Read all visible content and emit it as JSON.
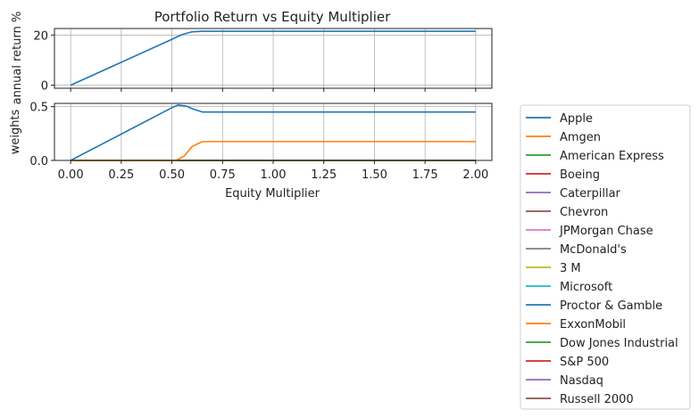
{
  "chart_data": {
    "type": "line",
    "title": "Portfolio Return vs Equity Multiplier",
    "xlabel": "Equity Multiplier",
    "x_ticks": [
      "0.00",
      "0.25",
      "0.50",
      "0.75",
      "1.00",
      "1.25",
      "1.50",
      "1.75",
      "2.00"
    ],
    "xlim": [
      -0.08,
      2.08
    ],
    "grid": true,
    "legend_position": "outside-right",
    "top": {
      "ylabel": "annual return %",
      "ylim": [
        -1.2,
        22.6
      ],
      "y_ticks": [
        0,
        20
      ],
      "series": [
        {
          "color": "#1f77b4",
          "points": [
            [
              0.0,
              0.0
            ],
            [
              0.5,
              18.3
            ],
            [
              0.55,
              20.2
            ],
            [
              0.6,
              21.3
            ],
            [
              0.65,
              21.5
            ],
            [
              2.0,
              21.5
            ]
          ]
        }
      ]
    },
    "bottom": {
      "ylabel": "weights",
      "ylim": [
        0.0,
        0.53
      ],
      "y_ticks": [
        "0.0",
        "0.5"
      ],
      "series": [
        {
          "name": "Apple",
          "color": "#1f77b4",
          "points": [
            [
              0.0,
              0.0
            ],
            [
              0.5,
              0.49
            ],
            [
              0.53,
              0.515
            ],
            [
              0.57,
              0.505
            ],
            [
              0.6,
              0.48
            ],
            [
              0.65,
              0.45
            ],
            [
              2.0,
              0.45
            ]
          ]
        },
        {
          "name": "Amgen",
          "color": "#ff7f0e",
          "points": [
            [
              0.0,
              0.0
            ],
            [
              0.52,
              0.0
            ],
            [
              0.56,
              0.04
            ],
            [
              0.6,
              0.13
            ],
            [
              0.65,
              0.175
            ],
            [
              2.0,
              0.175
            ]
          ]
        },
        {
          "name": "American Express",
          "color": "#2ca02c",
          "points": [
            [
              0.0,
              0.0
            ],
            [
              2.0,
              0.0
            ]
          ]
        },
        {
          "name": "Boeing",
          "color": "#d62728",
          "points": [
            [
              0.0,
              0.0
            ],
            [
              2.0,
              0.0
            ]
          ]
        },
        {
          "name": "Caterpillar",
          "color": "#9467bd",
          "points": [
            [
              0.0,
              0.0
            ],
            [
              2.0,
              0.0
            ]
          ]
        },
        {
          "name": "Chevron",
          "color": "#8c564b",
          "points": [
            [
              0.0,
              0.0
            ],
            [
              2.0,
              0.0
            ]
          ]
        },
        {
          "name": "JPMorgan Chase",
          "color": "#e377c2",
          "points": [
            [
              0.0,
              0.0
            ],
            [
              2.0,
              0.0
            ]
          ]
        },
        {
          "name": "McDonald's",
          "color": "#7f7f7f",
          "points": [
            [
              0.0,
              0.0
            ],
            [
              2.0,
              0.0
            ]
          ]
        },
        {
          "name": "3 M",
          "color": "#bcbd22",
          "points": [
            [
              0.0,
              0.0
            ],
            [
              2.0,
              0.0
            ]
          ]
        },
        {
          "name": "Microsoft",
          "color": "#17becf",
          "points": [
            [
              0.0,
              0.0
            ],
            [
              2.0,
              0.0
            ]
          ]
        },
        {
          "name": "Proctor & Gamble",
          "color": "#1f77b4",
          "points": [
            [
              0.0,
              0.0
            ],
            [
              2.0,
              0.0
            ]
          ]
        },
        {
          "name": "ExxonMobil",
          "color": "#ff7f0e",
          "points": [
            [
              0.0,
              0.0
            ],
            [
              2.0,
              0.0
            ]
          ]
        },
        {
          "name": "Dow Jones Industrial",
          "color": "#2ca02c",
          "points": [
            [
              0.0,
              0.0
            ],
            [
              2.0,
              0.0
            ]
          ]
        },
        {
          "name": "S&P 500",
          "color": "#d62728",
          "points": [
            [
              0.0,
              0.0
            ],
            [
              2.0,
              0.0
            ]
          ]
        },
        {
          "name": "Nasdaq",
          "color": "#9467bd",
          "points": [
            [
              0.0,
              0.0
            ],
            [
              2.0,
              0.0
            ]
          ]
        },
        {
          "name": "Russell 2000",
          "color": "#8c564b",
          "points": [
            [
              0.0,
              0.0
            ],
            [
              2.0,
              0.0
            ]
          ]
        }
      ]
    }
  }
}
